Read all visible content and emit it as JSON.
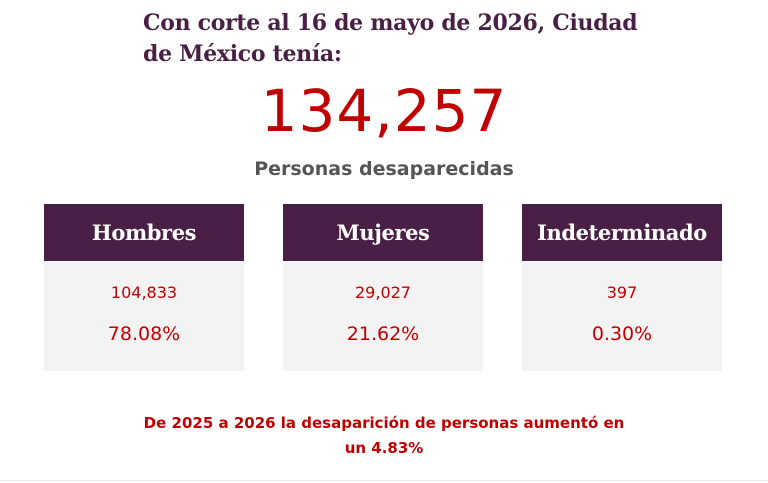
{
  "headline": "Con corte al 16 de mayo de 2026, Ciudad de México tenía:",
  "total": "134,257",
  "total_label": "Personas desaparecidas",
  "categories": [
    {
      "label": "Hombres",
      "count": "104,833",
      "percent": "78.08%"
    },
    {
      "label": "Mujeres",
      "count": "29,027",
      "percent": "21.62%"
    },
    {
      "label": "Indeterminado",
      "count": "397",
      "percent": "0.30%"
    }
  ],
  "note": "De 2025 a 2026 la desaparición de personas aumentó en un 4.83%",
  "colors": {
    "header_bg": "#4a1f45",
    "accent_red": "#c00000",
    "card_bg": "#f3f3f3",
    "subtitle_gray": "#555555"
  }
}
